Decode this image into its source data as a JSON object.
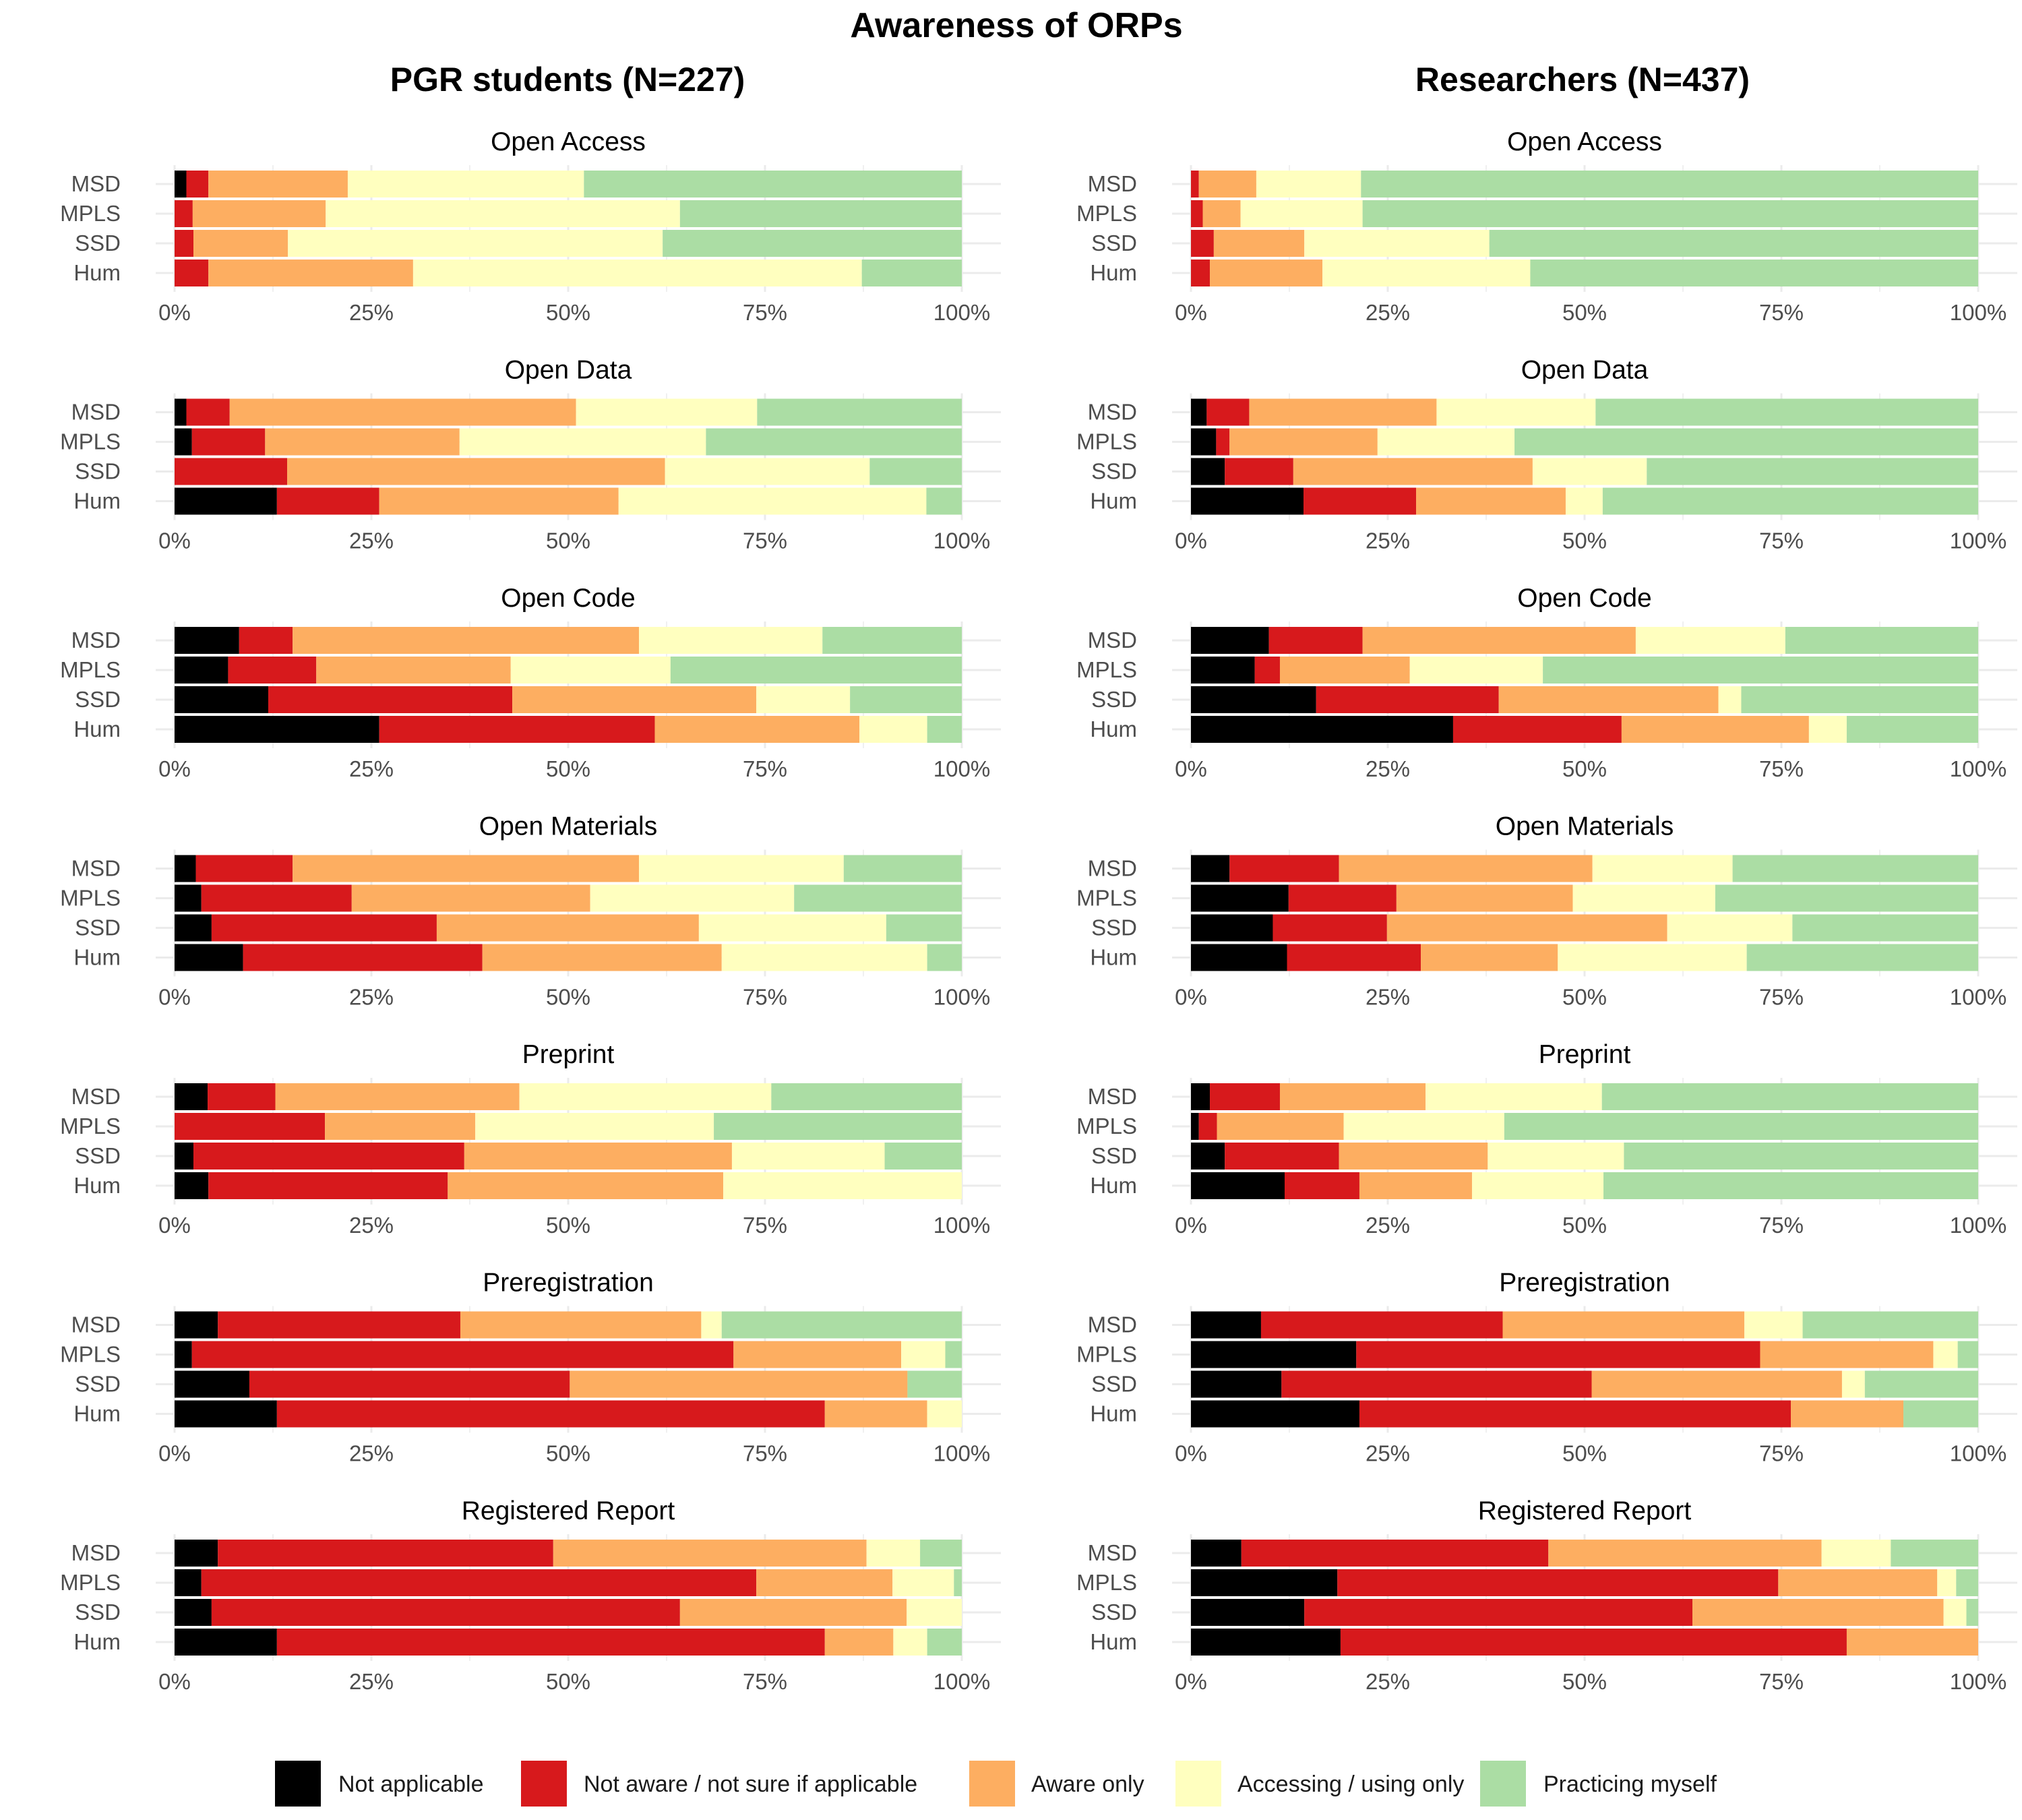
{
  "chart_data": {
    "type": "bar",
    "orientation": "horizontal",
    "stacked": "percent",
    "title": "Awareness of ORPs",
    "legend_position": "bottom",
    "grid": true,
    "xlim": [
      0,
      100
    ],
    "xticks": [
      "0%",
      "25%",
      "50%",
      "75%",
      "100%"
    ],
    "categories": [
      "MSD",
      "MPLS",
      "SSD",
      "Hum"
    ],
    "response_levels": [
      {
        "name": "Not applicable",
        "color": "#000000"
      },
      {
        "name": "Not aware / not sure if applicable",
        "color": "#d7191c"
      },
      {
        "name": "Aware only",
        "color": "#fdae61"
      },
      {
        "name": "Accessing / using only",
        "color": "#ffffbf"
      },
      {
        "name": "Practicing myself",
        "color": "#abdda4"
      }
    ],
    "groups": [
      {
        "title": "PGR students (N=227)",
        "panels": [
          {
            "title": "Open Access",
            "values": [
              [
                1.5,
                2.8,
                17.7,
                30.0,
                48.0
              ],
              [
                0,
                2.3,
                16.9,
                45.0,
                35.8
              ],
              [
                0,
                2.4,
                12.0,
                47.6,
                38.0
              ],
              [
                0,
                4.3,
                26.0,
                57.0,
                12.7
              ]
            ]
          },
          {
            "title": "Open Data",
            "values": [
              [
                1.5,
                5.5,
                44.0,
                23.0,
                26.0
              ],
              [
                2.2,
                9.3,
                24.7,
                31.3,
                32.5
              ],
              [
                0,
                14.3,
                48.0,
                26.0,
                11.7
              ],
              [
                13.0,
                13.0,
                30.4,
                39.1,
                4.5
              ]
            ]
          },
          {
            "title": "Open Code",
            "values": [
              [
                8.2,
                6.8,
                44.0,
                23.3,
                17.7
              ],
              [
                6.8,
                11.2,
                24.7,
                20.3,
                37.0
              ],
              [
                11.9,
                31.0,
                31.0,
                11.9,
                14.2
              ],
              [
                26.0,
                35.0,
                26.0,
                8.6,
                4.4
              ]
            ]
          },
          {
            "title": "Open Materials",
            "values": [
              [
                2.7,
                12.3,
                44.0,
                26.0,
                15.0
              ],
              [
                3.4,
                19.1,
                30.3,
                25.9,
                21.3
              ],
              [
                4.7,
                28.6,
                33.3,
                23.8,
                9.6
              ],
              [
                8.7,
                30.4,
                30.4,
                26.1,
                4.4
              ]
            ]
          },
          {
            "title": "Preprint",
            "values": [
              [
                4.2,
                8.6,
                31.0,
                32.0,
                24.2
              ],
              [
                0,
                19.1,
                19.1,
                30.3,
                31.5
              ],
              [
                2.4,
                34.4,
                34.0,
                19.4,
                9.8
              ],
              [
                4.3,
                30.4,
                35.0,
                30.3,
                0
              ]
            ]
          },
          {
            "title": "Preregistration",
            "values": [
              [
                5.5,
                30.8,
                30.6,
                2.6,
                30.5
              ],
              [
                2.2,
                68.8,
                21.3,
                5.6,
                2.1
              ],
              [
                9.5,
                40.7,
                42.9,
                0,
                6.9
              ],
              [
                13.0,
                69.6,
                13.0,
                4.4,
                0
              ]
            ]
          },
          {
            "title": "Registered Report",
            "values": [
              [
                5.5,
                42.6,
                39.8,
                6.8,
                5.3
              ],
              [
                3.4,
                70.5,
                17.3,
                7.8,
                1.0
              ],
              [
                4.7,
                59.5,
                28.8,
                7.0,
                0
              ],
              [
                13.0,
                69.6,
                8.7,
                4.3,
                4.4
              ]
            ]
          }
        ]
      },
      {
        "title": "Researchers (N=437)",
        "panels": [
          {
            "title": "Open Access",
            "values": [
              [
                0,
                1.0,
                7.3,
                13.3,
                78.4
              ],
              [
                0,
                1.5,
                4.8,
                15.5,
                78.2
              ],
              [
                0,
                2.9,
                11.5,
                23.5,
                62.1
              ],
              [
                0,
                2.4,
                14.3,
                26.4,
                56.9
              ]
            ]
          },
          {
            "title": "Open Data",
            "values": [
              [
                2.0,
                5.4,
                23.8,
                20.2,
                48.6
              ],
              [
                3.2,
                1.7,
                18.8,
                17.4,
                58.9
              ],
              [
                4.3,
                8.7,
                30.4,
                14.5,
                42.1
              ],
              [
                14.3,
                14.3,
                19.0,
                4.7,
                47.7
              ]
            ]
          },
          {
            "title": "Open Code",
            "values": [
              [
                9.9,
                11.9,
                34.7,
                19.0,
                24.5
              ],
              [
                8.1,
                3.2,
                16.5,
                16.9,
                55.3
              ],
              [
                15.9,
                23.2,
                27.9,
                2.9,
                30.1
              ],
              [
                33.3,
                21.4,
                23.8,
                4.8,
                16.7
              ]
            ]
          },
          {
            "title": "Open Materials",
            "values": [
              [
                4.9,
                13.9,
                32.2,
                17.8,
                31.2
              ],
              [
                12.4,
                13.7,
                22.4,
                18.1,
                33.4
              ],
              [
                10.4,
                14.5,
                35.6,
                15.9,
                23.6
              ],
              [
                12.2,
                17.0,
                17.4,
                24.0,
                29.4
              ]
            ]
          },
          {
            "title": "Preprint",
            "values": [
              [
                2.4,
                8.9,
                18.5,
                22.4,
                47.8
              ],
              [
                1.0,
                2.3,
                16.1,
                20.4,
                60.2
              ],
              [
                4.3,
                14.5,
                18.9,
                17.3,
                45.0
              ],
              [
                11.9,
                9.5,
                14.3,
                16.7,
                47.6
              ]
            ]
          },
          {
            "title": "Preregistration",
            "values": [
              [
                8.9,
                30.7,
                30.7,
                7.4,
                22.3
              ],
              [
                21.0,
                51.3,
                22.0,
                3.1,
                2.6
              ],
              [
                11.5,
                39.4,
                31.8,
                2.9,
                14.4
              ],
              [
                21.4,
                54.8,
                14.3,
                0,
                9.5
              ]
            ]
          },
          {
            "title": "Registered Report",
            "values": [
              [
                6.4,
                39.0,
                34.7,
                8.8,
                11.1
              ],
              [
                18.6,
                56.0,
                20.2,
                2.4,
                2.8
              ],
              [
                14.4,
                49.3,
                31.9,
                2.9,
                1.5
              ],
              [
                19.0,
                64.3,
                16.7,
                0,
                0
              ]
            ]
          }
        ]
      }
    ]
  }
}
